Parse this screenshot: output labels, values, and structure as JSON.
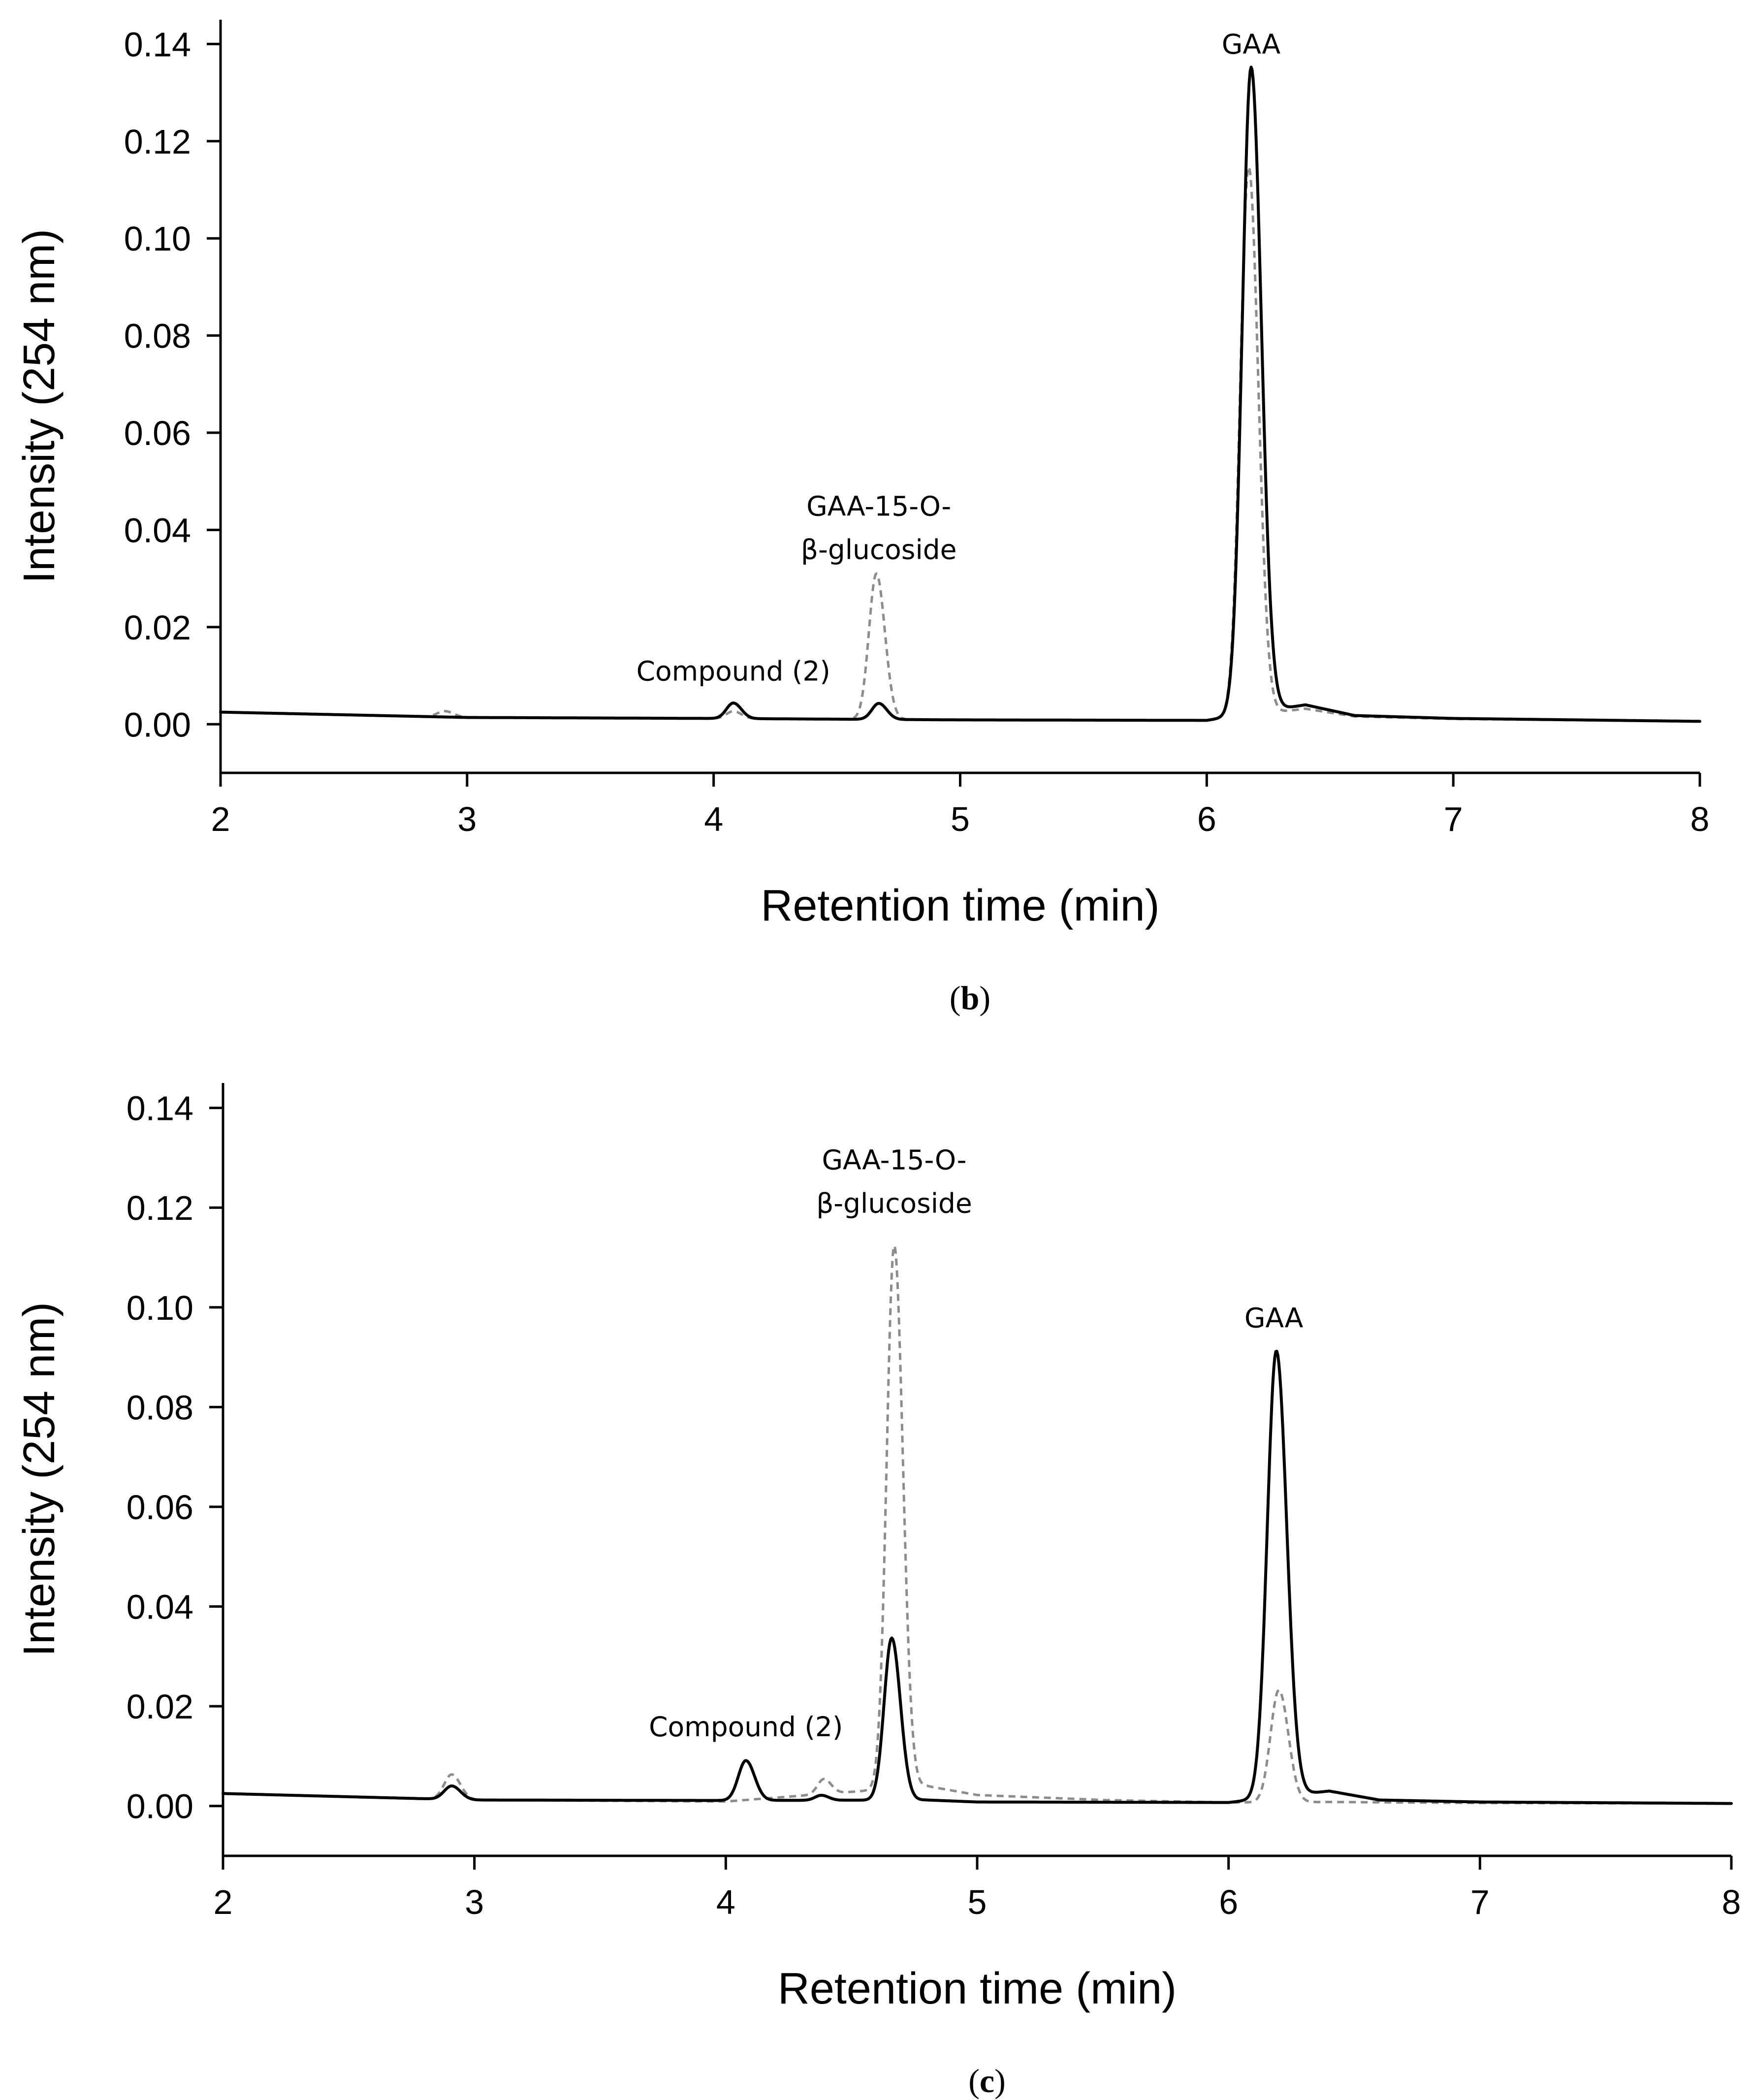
{
  "colors": {
    "solid": "#000000",
    "dashed": "#8c8c8c"
  },
  "chart_data": [
    {
      "panel": "b",
      "panel_label": {
        "open": "(",
        "letter": "b",
        "close": ")"
      },
      "type": "line",
      "xlabel": "Retention time (min)",
      "ylabel": "Intensity (254 nm)",
      "xlim": [
        2,
        8
      ],
      "ylim": [
        -0.01,
        0.145
      ],
      "xticks": [
        "2",
        "3",
        "4",
        "5",
        "6",
        "7",
        "8"
      ],
      "yticks": [
        "0.00",
        "0.02",
        "0.04",
        "0.06",
        "0.08",
        "0.10",
        "0.12",
        "0.14"
      ],
      "annotations": [
        {
          "lines": [
            "GAA"
          ],
          "x": 6.18,
          "y": 0.137
        },
        {
          "lines": [
            "GAA-15-O-",
            "β-glucoside"
          ],
          "x": 4.67,
          "y": 0.033
        },
        {
          "lines": [
            "Compound (2)"
          ],
          "x": 4.08,
          "y": 0.008
        }
      ],
      "series": [
        {
          "name": "solid trace",
          "style": "solid",
          "baseline": [
            [
              2.0,
              0.0025
            ],
            [
              3.0,
              0.0014
            ],
            [
              4.0,
              0.0012
            ],
            [
              5.0,
              0.0009
            ],
            [
              6.0,
              0.0008
            ],
            [
              6.4,
              0.004
            ],
            [
              6.6,
              0.0018
            ],
            [
              7.0,
              0.0012
            ],
            [
              8.0,
              0.0006
            ]
          ],
          "peaks": [
            {
              "center": 4.08,
              "height": 0.0032,
              "width": 0.028
            },
            {
              "center": 4.67,
              "height": 0.0033,
              "width": 0.028
            },
            {
              "center": 6.18,
              "height": 0.133,
              "width": 0.036
            }
          ]
        },
        {
          "name": "dashed trace",
          "style": "dashed",
          "baseline": [
            [
              2.0,
              0.0025
            ],
            [
              3.0,
              0.0014
            ],
            [
              4.0,
              0.0012
            ],
            [
              5.0,
              0.0009
            ],
            [
              6.0,
              0.0008
            ],
            [
              6.4,
              0.0032
            ],
            [
              6.6,
              0.0016
            ],
            [
              7.0,
              0.0011
            ],
            [
              8.0,
              0.0006
            ]
          ],
          "peaks": [
            {
              "center": 2.91,
              "height": 0.0012,
              "width": 0.03
            },
            {
              "center": 4.08,
              "height": 0.0015,
              "width": 0.028
            },
            {
              "center": 4.66,
              "height": 0.03,
              "width": 0.03
            },
            {
              "center": 6.17,
              "height": 0.113,
              "width": 0.034
            }
          ]
        }
      ]
    },
    {
      "panel": "c",
      "panel_label": {
        "open": "(",
        "letter": "c",
        "close": ")"
      },
      "type": "line",
      "xlabel": "Retention time (min)",
      "ylabel": "Intensity (254 nm)",
      "xlim": [
        2,
        8
      ],
      "ylim": [
        -0.01,
        0.145
      ],
      "xticks": [
        "2",
        "3",
        "4",
        "5",
        "6",
        "7",
        "8"
      ],
      "yticks": [
        "0.00",
        "0.02",
        "0.04",
        "0.06",
        "0.08",
        "0.10",
        "0.12",
        "0.14"
      ],
      "annotations": [
        {
          "lines": [
            "GAA"
          ],
          "x": 6.18,
          "y": 0.095
        },
        {
          "lines": [
            "GAA-15-O-",
            "β-glucoside"
          ],
          "x": 4.67,
          "y": 0.118
        },
        {
          "lines": [
            "Compound (2)"
          ],
          "x": 4.08,
          "y": 0.013
        }
      ],
      "series": [
        {
          "name": "solid trace",
          "style": "solid",
          "baseline": [
            [
              2.0,
              0.0025
            ],
            [
              3.0,
              0.0012
            ],
            [
              4.0,
              0.0011
            ],
            [
              4.8,
              0.0012
            ],
            [
              5.0,
              0.0008
            ],
            [
              6.0,
              0.0007
            ],
            [
              6.4,
              0.003
            ],
            [
              6.6,
              0.0012
            ],
            [
              7.0,
              0.0008
            ],
            [
              8.0,
              0.0005
            ]
          ],
          "peaks": [
            {
              "center": 2.91,
              "height": 0.0027,
              "width": 0.03
            },
            {
              "center": 4.08,
              "height": 0.008,
              "width": 0.03
            },
            {
              "center": 4.38,
              "height": 0.001,
              "width": 0.025
            },
            {
              "center": 4.66,
              "height": 0.0325,
              "width": 0.03
            },
            {
              "center": 6.19,
              "height": 0.0895,
              "width": 0.036
            }
          ]
        },
        {
          "name": "dashed trace",
          "style": "dashed",
          "baseline": [
            [
              2.0,
              0.0025
            ],
            [
              3.0,
              0.0012
            ],
            [
              4.0,
              0.0009
            ],
            [
              4.8,
              0.004
            ],
            [
              5.0,
              0.0022
            ],
            [
              5.5,
              0.0012
            ],
            [
              6.0,
              0.0007
            ],
            [
              6.4,
              0.0008
            ],
            [
              7.0,
              0.0006
            ],
            [
              8.0,
              0.0005
            ]
          ],
          "peaks": [
            {
              "center": 2.91,
              "height": 0.005,
              "width": 0.03
            },
            {
              "center": 4.39,
              "height": 0.003,
              "width": 0.025
            },
            {
              "center": 4.67,
              "height": 0.109,
              "width": 0.03
            },
            {
              "center": 6.2,
              "height": 0.0225,
              "width": 0.033
            }
          ]
        }
      ]
    }
  ]
}
